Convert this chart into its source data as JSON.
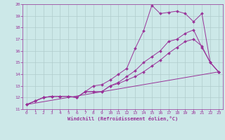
{
  "xlabel": "Windchill (Refroidissement éolien,°C)",
  "xlim": [
    -0.5,
    23.5
  ],
  "ylim": [
    11,
    20
  ],
  "yticks": [
    11,
    12,
    13,
    14,
    15,
    16,
    17,
    18,
    19,
    20
  ],
  "xticks": [
    0,
    1,
    2,
    3,
    4,
    5,
    6,
    7,
    8,
    9,
    10,
    11,
    12,
    13,
    14,
    15,
    16,
    17,
    18,
    19,
    20,
    21,
    22,
    23
  ],
  "background_color": "#cce8e8",
  "grid_color": "#b0cccc",
  "line_color": "#993399",
  "lines": [
    {
      "comment": "straight diagonal from 0,11.4 to 23,14.2",
      "x": [
        0,
        23
      ],
      "y": [
        11.4,
        14.2
      ],
      "marker": null,
      "markersize": 0
    },
    {
      "x": [
        0,
        1,
        2,
        3,
        4,
        5,
        6,
        7,
        8,
        9,
        10,
        11,
        12,
        13,
        14,
        15,
        16,
        17,
        18,
        19,
        20,
        21,
        22,
        23
      ],
      "y": [
        11.4,
        11.7,
        12.0,
        12.1,
        12.1,
        12.1,
        12.0,
        12.5,
        12.5,
        12.5,
        13.0,
        13.2,
        13.5,
        13.8,
        14.2,
        14.7,
        15.2,
        15.8,
        16.3,
        16.8,
        17.0,
        16.4,
        15.0,
        14.2
      ],
      "marker": "D",
      "markersize": 2
    },
    {
      "x": [
        0,
        1,
        2,
        3,
        4,
        5,
        6,
        7,
        8,
        9,
        10,
        11,
        12,
        13,
        14,
        15,
        16,
        17,
        18,
        19,
        20,
        21,
        22,
        23
      ],
      "y": [
        11.4,
        11.7,
        12.0,
        12.1,
        12.1,
        12.1,
        12.0,
        12.5,
        12.5,
        12.5,
        13.0,
        13.3,
        13.8,
        14.3,
        15.0,
        15.5,
        16.0,
        16.8,
        17.0,
        17.5,
        17.8,
        16.3,
        15.0,
        14.2
      ],
      "marker": "D",
      "markersize": 2
    },
    {
      "x": [
        0,
        1,
        2,
        3,
        4,
        5,
        6,
        7,
        8,
        9,
        10,
        11,
        12,
        13,
        14,
        15,
        16,
        17,
        18,
        19,
        20,
        21,
        22,
        23
      ],
      "y": [
        11.4,
        11.7,
        12.0,
        12.1,
        12.1,
        12.1,
        12.0,
        12.5,
        13.0,
        13.1,
        13.5,
        14.0,
        14.5,
        16.2,
        17.7,
        19.9,
        19.2,
        19.3,
        19.4,
        19.2,
        18.5,
        19.2,
        15.0,
        14.2
      ],
      "marker": "D",
      "markersize": 2
    }
  ]
}
